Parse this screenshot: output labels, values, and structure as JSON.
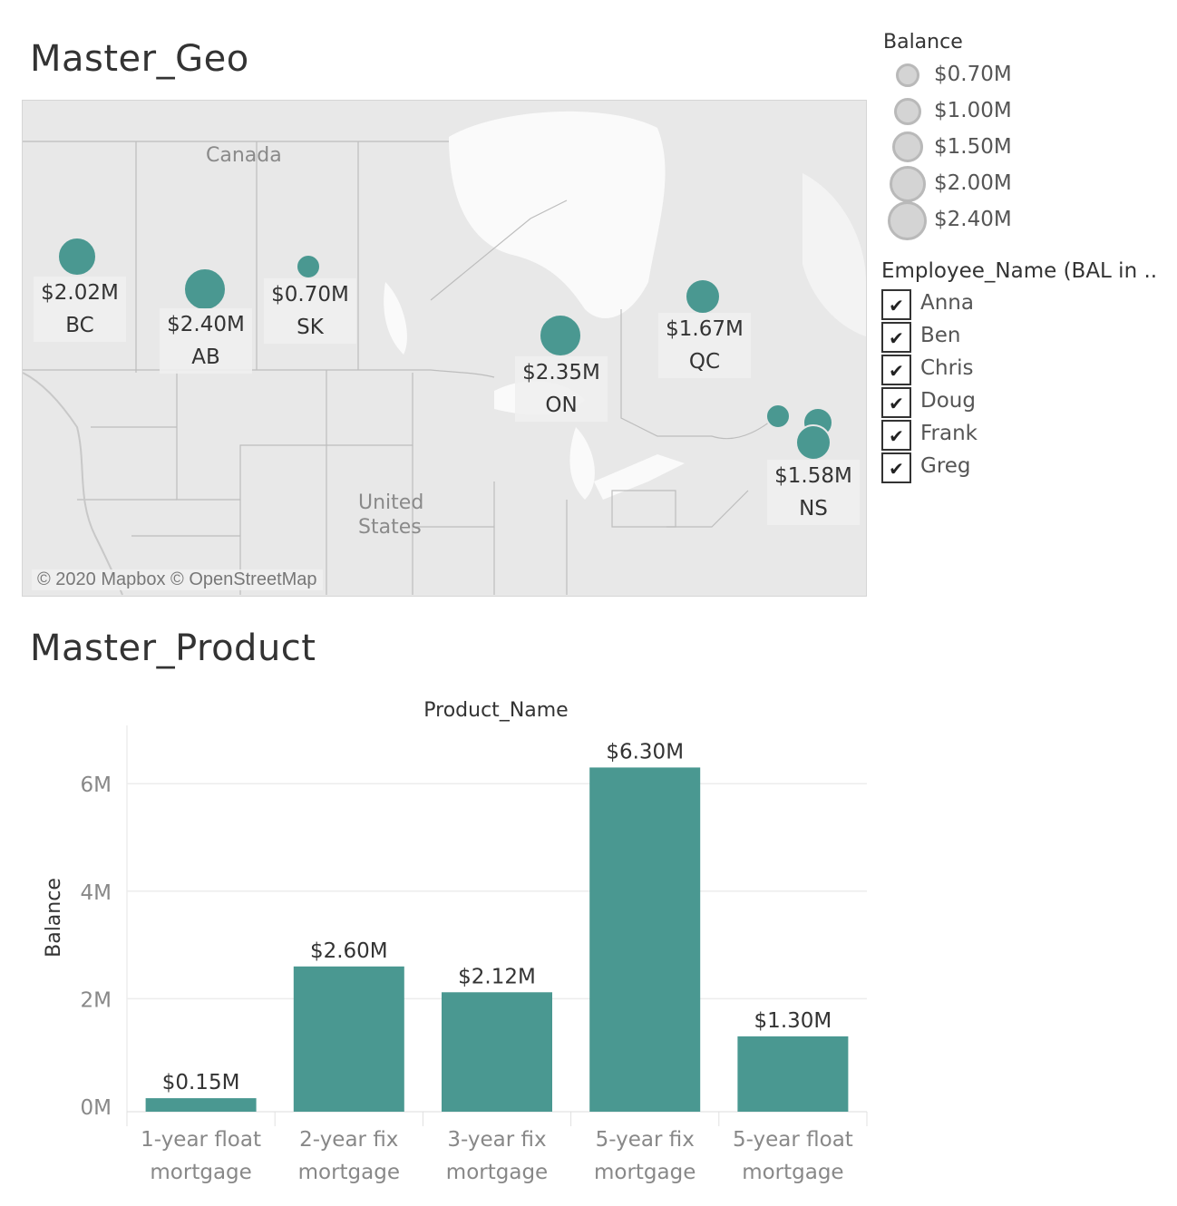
{
  "geo": {
    "title": "Master_Geo",
    "places": {
      "canada": "Canada",
      "us_line1": "United",
      "us_line2": "States"
    },
    "attribution": "© 2020 Mapbox © OpenStreetMap",
    "provinces": [
      {
        "code": "BC",
        "balance": "$2.02M",
        "value": 2.02
      },
      {
        "code": "AB",
        "balance": "$2.40M",
        "value": 2.4
      },
      {
        "code": "SK",
        "balance": "$0.70M",
        "value": 0.7
      },
      {
        "code": "ON",
        "balance": "$2.35M",
        "value": 2.35
      },
      {
        "code": "QC",
        "balance": "$1.67M",
        "value": 1.67
      },
      {
        "code": "NS",
        "balance": "$1.58M",
        "value": 1.58
      }
    ]
  },
  "legend_balance": {
    "title": "Balance",
    "items": [
      "$0.70M",
      "$1.00M",
      "$1.50M",
      "$2.00M",
      "$2.40M"
    ]
  },
  "legend_employee": {
    "title": "Employee_Name (BAL in ..",
    "items": [
      "Anna",
      "Ben",
      "Chris",
      "Doug",
      "Frank",
      "Greg"
    ],
    "check_glyph": "✔"
  },
  "product": {
    "title": "Master_Product"
  },
  "colors": {
    "bar": "#4a9891",
    "grid": "#ececec"
  },
  "chart_data": {
    "type": "bar",
    "title": "Product_Name",
    "ylabel": "Balance",
    "ylim": [
      0,
      7
    ],
    "yticks": [
      "0M",
      "2M",
      "4M",
      "6M"
    ],
    "ytick_values": [
      0,
      2,
      4,
      6
    ],
    "categories": [
      [
        "1-year float",
        "mortgage"
      ],
      [
        "2-year fix",
        "mortgage"
      ],
      [
        "3-year fix",
        "mortgage"
      ],
      [
        "5-year fix",
        "mortgage"
      ],
      [
        "5-year float",
        "mortgage"
      ]
    ],
    "values": [
      0.15,
      2.6,
      2.12,
      6.3,
      1.3
    ],
    "data_labels": [
      "$0.15M",
      "$2.60M",
      "$2.12M",
      "$6.30M",
      "$1.30M"
    ]
  }
}
